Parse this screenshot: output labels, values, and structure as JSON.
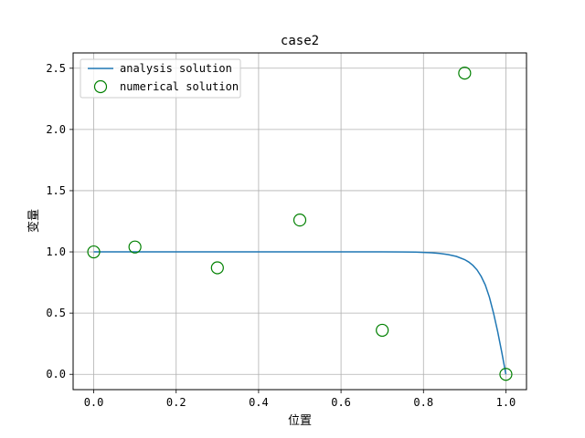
{
  "chart_data": {
    "type": "line",
    "title": "case2",
    "xlabel": "位置",
    "ylabel": "变量",
    "xlim": [
      -0.05,
      1.05
    ],
    "ylim": [
      -0.125,
      2.625
    ],
    "xticks": [
      0.0,
      0.2,
      0.4,
      0.6,
      0.8,
      1.0
    ],
    "xtick_labels": [
      "0.0",
      "0.2",
      "0.4",
      "0.6",
      "0.8",
      "1.0"
    ],
    "yticks": [
      0.0,
      0.5,
      1.0,
      1.5,
      2.0,
      2.5
    ],
    "ytick_labels": [
      "0.0",
      "0.5",
      "1.0",
      "1.5",
      "2.0",
      "2.5"
    ],
    "grid": true,
    "legend_position": "top-left",
    "series": [
      {
        "name": "analysis solution",
        "kind": "line",
        "color": "#1f77b4",
        "x": [
          0.0,
          0.05,
          0.1,
          0.15,
          0.2,
          0.25,
          0.3,
          0.35,
          0.4,
          0.45,
          0.5,
          0.55,
          0.6,
          0.65,
          0.7,
          0.75,
          0.78,
          0.8,
          0.82,
          0.84,
          0.86,
          0.88,
          0.9,
          0.91,
          0.92,
          0.93,
          0.94,
          0.95,
          0.96,
          0.97,
          0.98,
          0.99,
          1.0
        ],
        "y": [
          1.0,
          1.0,
          1.0,
          1.0,
          1.0,
          1.0,
          1.0,
          1.0,
          1.0,
          1.0,
          1.0,
          1.0,
          1.0,
          1.0,
          1.0,
          0.999,
          0.998,
          0.996,
          0.993,
          0.987,
          0.978,
          0.963,
          0.937,
          0.917,
          0.89,
          0.853,
          0.8,
          0.73,
          0.63,
          0.5,
          0.35,
          0.18,
          0.0
        ]
      },
      {
        "name": "numerical solution",
        "kind": "scatter",
        "color": "#008000",
        "x": [
          0.0,
          0.1,
          0.3,
          0.5,
          0.7,
          0.9,
          1.0
        ],
        "y": [
          1.0,
          1.04,
          0.87,
          1.26,
          0.36,
          2.46,
          0.0
        ]
      }
    ]
  }
}
